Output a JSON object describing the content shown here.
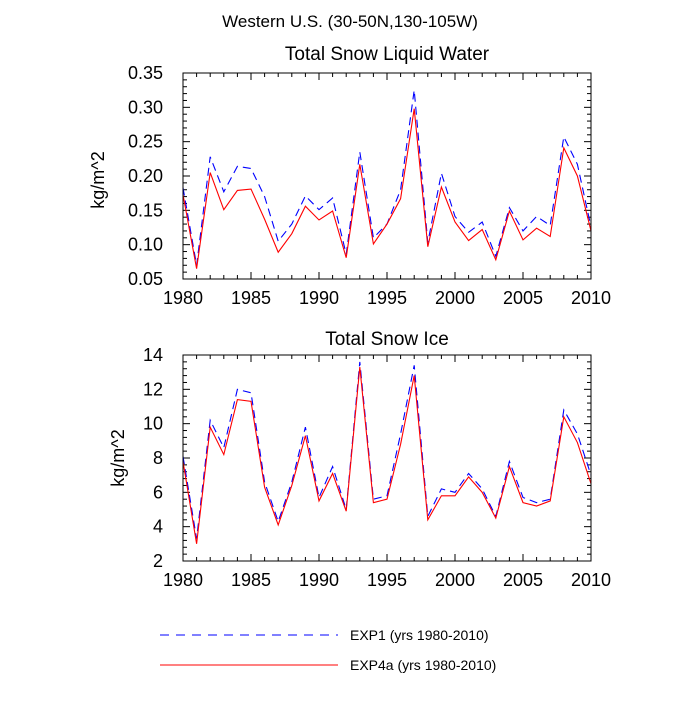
{
  "figure_title": "Western U.S. (30-50N,130-105W)",
  "chart_data": [
    {
      "type": "line",
      "title": "Total Snow Liquid Water",
      "xlabel": "",
      "ylabel": "kg/m^2",
      "xlim": [
        1980,
        2010
      ],
      "ylim": [
        0.05,
        0.35
      ],
      "xticks": [
        1980,
        1985,
        1990,
        1995,
        2000,
        2005,
        2010
      ],
      "xtick_labels": [
        "1980",
        "1985",
        "1990",
        "1995",
        "2000",
        "2005",
        "2010"
      ],
      "yticks": [
        0.05,
        0.1,
        0.15,
        0.2,
        0.25,
        0.3,
        0.35
      ],
      "ytick_labels": [
        "0.05",
        "0.10",
        "0.15",
        "0.20",
        "0.25",
        "0.30",
        "0.35"
      ],
      "grid": false,
      "x": [
        1980,
        1981,
        1982,
        1983,
        1984,
        1985,
        1986,
        1987,
        1988,
        1989,
        1990,
        1991,
        1992,
        1993,
        1994,
        1995,
        1996,
        1997,
        1998,
        1999,
        2000,
        2001,
        2002,
        2003,
        2004,
        2005,
        2006,
        2007,
        2008,
        2009,
        2010
      ],
      "series": [
        {
          "name": "EXP1 (yrs 1980-2010)",
          "color": "#0000ff",
          "dash": "dashed",
          "values": [
            0.183,
            0.07,
            0.228,
            0.177,
            0.214,
            0.211,
            0.17,
            0.105,
            0.13,
            0.171,
            0.151,
            0.168,
            0.086,
            0.235,
            0.11,
            0.13,
            0.18,
            0.325,
            0.103,
            0.204,
            0.141,
            0.118,
            0.133,
            0.083,
            0.154,
            0.12,
            0.141,
            0.128,
            0.257,
            0.217,
            0.126
          ]
        },
        {
          "name": "EXP4a (yrs 1980-2010)",
          "color": "#ff0000",
          "dash": "solid",
          "values": [
            0.173,
            0.065,
            0.205,
            0.151,
            0.179,
            0.181,
            0.137,
            0.089,
            0.116,
            0.156,
            0.136,
            0.149,
            0.081,
            0.217,
            0.101,
            0.13,
            0.167,
            0.298,
            0.097,
            0.184,
            0.133,
            0.106,
            0.122,
            0.078,
            0.149,
            0.107,
            0.124,
            0.112,
            0.241,
            0.2,
            0.12
          ]
        }
      ]
    },
    {
      "type": "line",
      "title": "Total Snow Ice",
      "xlabel": "",
      "ylabel": "kg/m^2",
      "xlim": [
        1980,
        2010
      ],
      "ylim": [
        2,
        14
      ],
      "xticks": [
        1980,
        1985,
        1990,
        1995,
        2000,
        2005,
        2010
      ],
      "xtick_labels": [
        "1980",
        "1985",
        "1990",
        "1995",
        "2000",
        "2005",
        "2010"
      ],
      "yticks": [
        2,
        4,
        6,
        8,
        10,
        12,
        14
      ],
      "ytick_labels": [
        "2",
        "4",
        "6",
        "8",
        "10",
        "12",
        "14"
      ],
      "grid": false,
      "x": [
        1980,
        1981,
        1982,
        1983,
        1984,
        1985,
        1986,
        1987,
        1988,
        1989,
        1990,
        1991,
        1992,
        1993,
        1994,
        1995,
        1996,
        1997,
        1998,
        1999,
        2000,
        2001,
        2002,
        2003,
        2004,
        2005,
        2006,
        2007,
        2008,
        2009,
        2010
      ],
      "series": [
        {
          "name": "EXP1 (yrs 1980-2010)",
          "color": "#0000ff",
          "dash": "dashed",
          "values": [
            8.1,
            3.3,
            10.2,
            8.6,
            12.0,
            11.8,
            6.6,
            4.3,
            6.6,
            9.8,
            5.7,
            7.5,
            5.0,
            13.6,
            5.6,
            5.8,
            9.4,
            13.4,
            4.6,
            6.2,
            6.0,
            7.1,
            6.2,
            4.6,
            7.8,
            5.7,
            5.4,
            5.6,
            10.8,
            9.4,
            7.0
          ]
        },
        {
          "name": "EXP4a (yrs 1980-2010)",
          "color": "#ff0000",
          "dash": "solid",
          "values": [
            7.8,
            3.0,
            9.8,
            8.2,
            11.4,
            11.3,
            6.3,
            4.1,
            6.4,
            9.3,
            5.5,
            7.1,
            4.9,
            13.3,
            5.4,
            5.6,
            8.8,
            12.8,
            4.4,
            5.8,
            5.8,
            6.9,
            6.0,
            4.5,
            7.5,
            5.4,
            5.2,
            5.5,
            10.4,
            8.9,
            6.5
          ]
        }
      ]
    }
  ],
  "legend": [
    {
      "label": "EXP1 (yrs 1980-2010)",
      "color": "#0000ff",
      "dash": "dashed"
    },
    {
      "label": "EXP4a (yrs 1980-2010)",
      "color": "#ff0000",
      "dash": "solid"
    }
  ]
}
